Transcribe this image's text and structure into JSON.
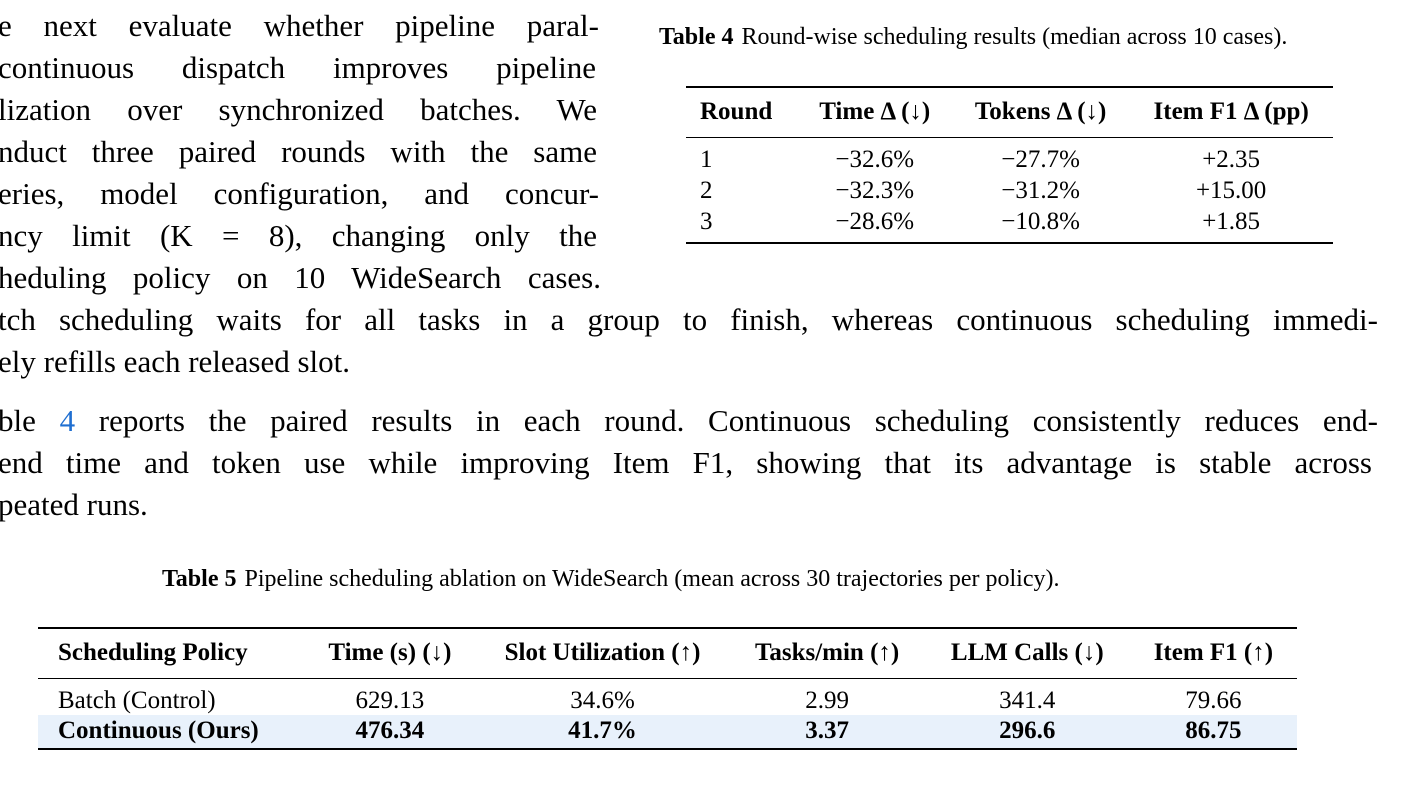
{
  "body_top": [
    "e next evaluate whether pipeline paral-",
    " continuous dispatch improves pipeline",
    "lization over synchronized batches.  We",
    "nduct three paired rounds with the same",
    "eries, model configuration, and concur-",
    "ncy limit (K = 8), changing only the",
    "heduling policy on 10 WideSearch cases."
  ],
  "body_full": [
    "tch scheduling waits for all tasks in a group to finish, whereas continuous scheduling immedi-",
    "ely refills each released slot."
  ],
  "para2": {
    "line1_pre": "ble ",
    "cite": "4",
    "line1_post": " reports the paired results in each round. Continuous scheduling consistently reduces end-",
    "line2": "end time and token use while improving Item F1, showing that its advantage is stable across",
    "line3": "peated runs."
  },
  "table4": {
    "label": "Table 4",
    "caption": "Round-wise scheduling results (median across 10 cases).",
    "headers": [
      "Round",
      "Time Δ (↓)",
      "Tokens Δ (↓)",
      "Item F1 Δ (pp)"
    ],
    "rows": [
      [
        "1",
        "−32.6%",
        "−27.7%",
        "+2.35"
      ],
      [
        "2",
        "−32.3%",
        "−31.2%",
        "+15.00"
      ],
      [
        "3",
        "−28.6%",
        "−10.8%",
        "+1.85"
      ]
    ]
  },
  "table5": {
    "label": "Table 5",
    "caption": "Pipeline scheduling ablation on WideSearch (mean across 30 trajectories per policy).",
    "headers": [
      "Scheduling Policy",
      "Time (s) (↓)",
      "Slot Utilization (↑)",
      "Tasks/min (↑)",
      "LLM Calls (↓)",
      "Item F1 (↑)"
    ],
    "rows": [
      [
        "Batch (Control)",
        "629.13",
        "34.6%",
        "2.99",
        "341.4",
        "79.66"
      ],
      [
        "Continuous (Ours)",
        "476.34",
        "41.7%",
        "3.37",
        "296.6",
        "86.75"
      ]
    ],
    "highlight_color": "#e8f1fb"
  }
}
